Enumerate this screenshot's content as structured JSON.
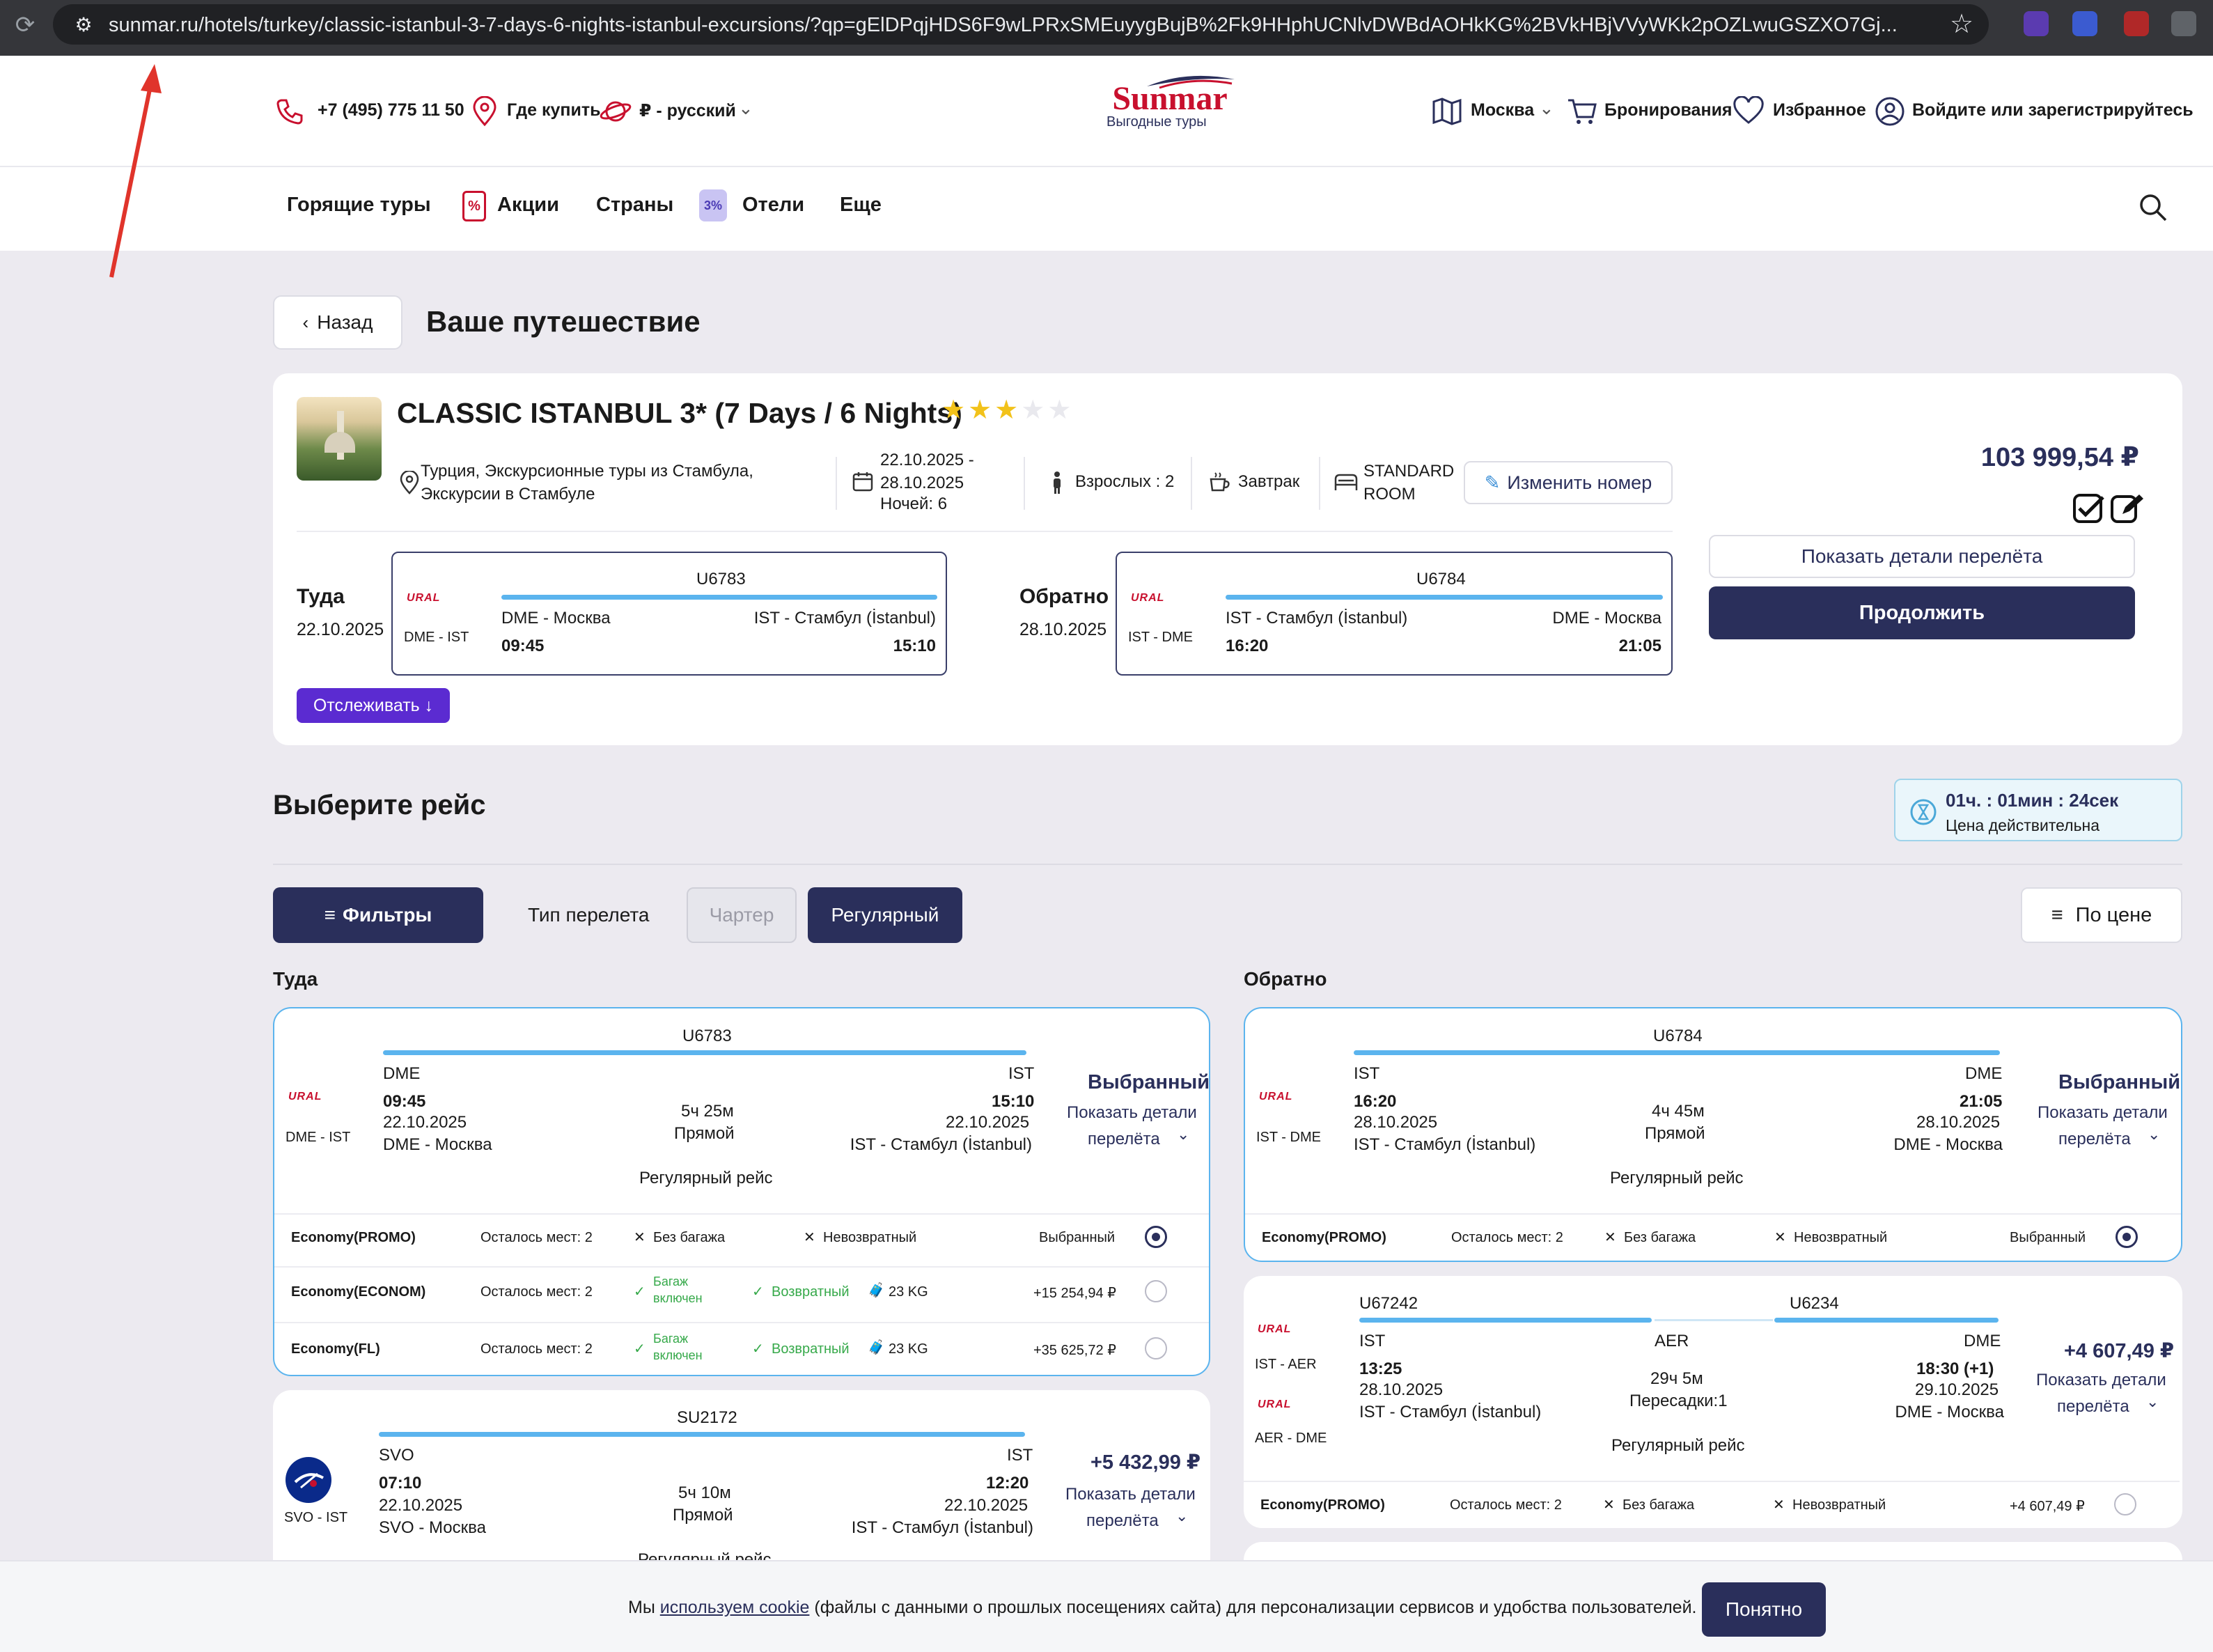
{
  "browser": {
    "url": "sunmar.ru/hotels/turkey/classic-istanbul-3-7-days-6-nights-istanbul-excursions/?qp=gElDPqjHDS6F9wLPRxSMEuyygBujB%2Fk9HHphUCNlvDWBdAOHkKG%2BVkHBjVVyWKk2pOZLwuGSZXO7Gj..."
  },
  "header": {
    "phone": "+7 (495) 775 11 50",
    "where_buy": "Где купить",
    "currency_lang": "₽ - русский",
    "logo": "Sunmar",
    "logo_tagline": "Выгодные туры",
    "city": "Москва",
    "bookings": "Бронирования",
    "favorites": "Избранное",
    "login": "Войдите или зарегистрируйтесь"
  },
  "nav": {
    "hot": "Горящие туры",
    "promo": "Акции",
    "countries": "Страны",
    "hotels": "Отели",
    "more": "Еще",
    "promo_badge": "%",
    "hotels_badge": "3%"
  },
  "page": {
    "back": "Назад",
    "title": "Ваше путешествие"
  },
  "hotel": {
    "name": "CLASSIC ISTANBUL 3* (7 Days / 6 Nights)",
    "stars_filled": 3,
    "stars_total": 5,
    "location": "Турция, Экскурсионные туры из Стамбула, Экскурсии в Стамбуле",
    "dates": "22.10.2025 - 28.10.2025",
    "nights": "Ночей: 6",
    "adults": "Взрослых : 2",
    "meal": "Завтрак",
    "room": "STANDARD ROOM",
    "change_room": "Изменить номер",
    "price": "103 999,54 ₽",
    "show_flight_details": "Показать детали перелёта",
    "continue": "Продолжить",
    "track": "Отслеживать ↓"
  },
  "summary": {
    "there_label": "Туда",
    "there_date": "22.10.2025",
    "back_label": "Обратно",
    "back_date": "28.10.2025",
    "out": {
      "airline": "URAL",
      "route": "DME - IST",
      "flight": "U6783",
      "from": "DME - Москва",
      "to": "IST - Стамбул (İstanbul)",
      "dep": "09:45",
      "arr": "15:10"
    },
    "ret": {
      "airline": "URAL",
      "route": "IST - DME",
      "flight": "U6784",
      "from": "IST - Стамбул (İstanbul)",
      "to": "DME - Москва",
      "dep": "16:20",
      "arr": "21:05"
    }
  },
  "select": {
    "title": "Выберите рейс",
    "timer": "01ч. : 01мин : 24сек",
    "timer_note": "Цена действительна",
    "filters": "Фильтры",
    "flight_type": "Тип перелета",
    "charter": "Чартер",
    "regular": "Регулярный",
    "sort": "По цене",
    "col_there": "Туда",
    "col_back": "Обратно"
  },
  "common": {
    "selected": "Выбранный",
    "show_details_1": "Показать детали",
    "show_details_2": "перелёта",
    "regular_flight": "Регулярный рейс",
    "direct": "Прямой"
  },
  "out1": {
    "flight": "U6783",
    "route": "DME - IST",
    "from_code": "DME",
    "to_code": "IST",
    "dep": "09:45",
    "arr": "15:10",
    "dep_date": "22.10.2025",
    "arr_date": "22.10.2025",
    "from_city": "DME - Москва",
    "to_city": "IST - Стамбул (İstanbul)",
    "duration": "5ч 25м",
    "fares": [
      {
        "class": "Economy(PROMO)",
        "seats": "Осталось мест: 2",
        "bag": "Без багажа",
        "refund": "Невозвратный",
        "price": "Выбранный"
      },
      {
        "class": "Economy(ECONOM)",
        "seats": "Осталось мест: 2",
        "bag1": "Багаж",
        "bag2": "включен",
        "refund": "Возвратный",
        "weight": "23 KG",
        "price": "+15 254,94 ₽"
      },
      {
        "class": "Economy(FL)",
        "seats": "Осталось мест: 2",
        "bag1": "Багаж",
        "bag2": "включен",
        "refund": "Возвратный",
        "weight": "23 KG",
        "price": "+35 625,72 ₽"
      }
    ]
  },
  "out2": {
    "flight": "SU2172",
    "route": "SVO - IST",
    "from_code": "SVO",
    "to_code": "IST",
    "dep": "07:10",
    "arr": "12:20",
    "dep_date": "22.10.2025",
    "arr_date": "22.10.2025",
    "from_city": "SVO - Москва",
    "to_city": "IST - Стамбул (İstanbul)",
    "duration": "5ч 10м",
    "price": "+5 432,99 ₽"
  },
  "ret1": {
    "flight": "U6784",
    "route": "IST - DME",
    "from_code": "IST",
    "to_code": "DME",
    "dep": "16:20",
    "arr": "21:05",
    "dep_date": "28.10.2025",
    "arr_date": "28.10.2025",
    "from_city": "IST - Стамбул (İstanbul)",
    "to_city": "DME - Москва",
    "duration": "4ч 45м",
    "fare": {
      "class": "Economy(PROMO)",
      "seats": "Осталось мест: 2",
      "bag": "Без багажа",
      "refund": "Невозвратный",
      "price": "Выбранный"
    }
  },
  "ret2": {
    "flight1": "U67242",
    "flight2": "U6234",
    "route1": "IST - AER",
    "route2": "AER - DME",
    "from_code": "IST",
    "mid_code": "AER",
    "to_code": "DME",
    "dep": "13:25",
    "arr": "18:30 (+1)",
    "dep_date": "28.10.2025",
    "arr_date": "29.10.2025",
    "from_city": "IST - Стамбул (İstanbul)",
    "to_city": "DME - Москва",
    "duration": "29ч 5м",
    "transfers": "Пересадки:1",
    "price": "+4 607,49 ₽",
    "fare": {
      "class": "Economy(PROMO)",
      "seats": "Осталось мест: 2",
      "bag": "Без багажа",
      "refund": "Невозвратный",
      "price": "+4 607,49 ₽"
    }
  },
  "cookie": {
    "pre": "Мы ",
    "link": "используем cookie",
    "post": " (файлы с данными о прошлых посещениях сайта) для персонализации сервисов и удобства пользователей.",
    "ok": "Понятно"
  },
  "colors": {
    "brand": "#2a2f5b",
    "accent_bar": "#5bb4ee",
    "track": "#5b2bd1",
    "arrow": "#e0342b"
  }
}
